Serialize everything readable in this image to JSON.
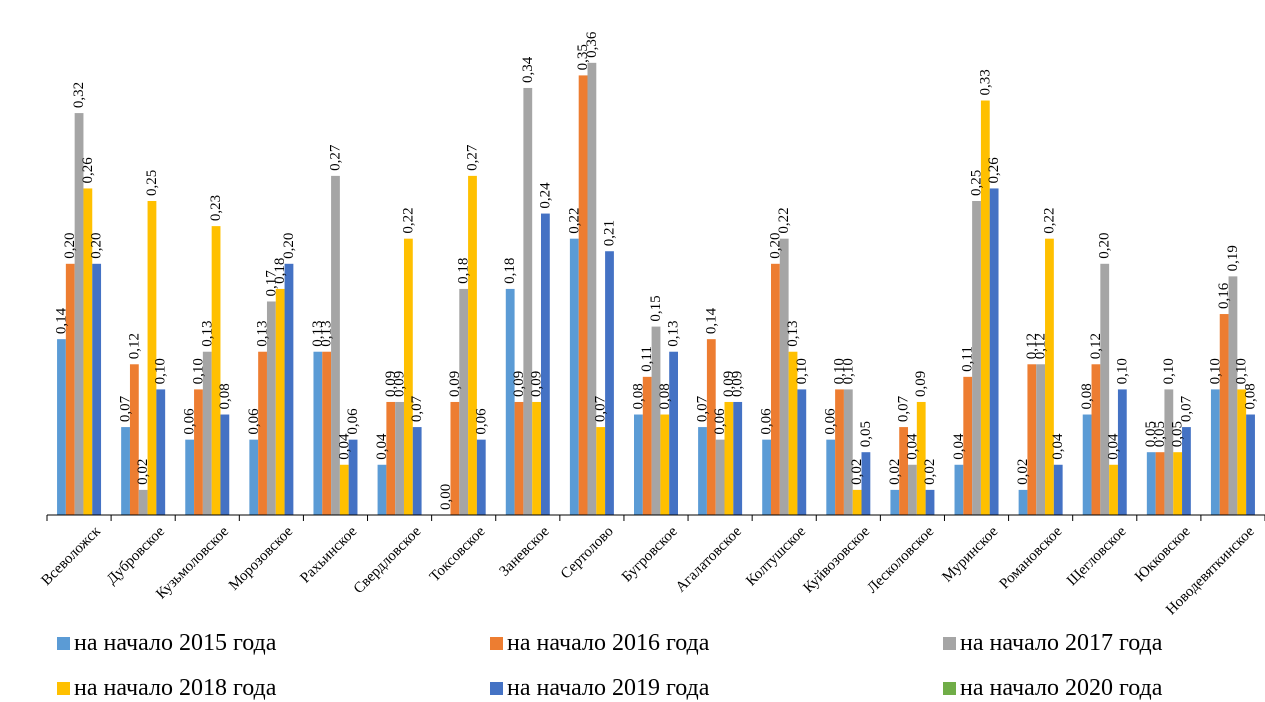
{
  "chart_data": {
    "type": "bar",
    "categories": [
      "Всеволожск",
      "Дубровское",
      "Кузьмоловское",
      "Морозовское",
      "Рахьинское",
      "Свердловское",
      "Токсовское",
      "Заневское",
      "Сертолово",
      "Бугровское",
      "Агалатовское",
      "Колтушское",
      "Куйвозовское",
      "Лесколовское",
      "Муринское",
      "Романовское",
      "Щегловское",
      "Юкковское",
      "Новодевяткинское"
    ],
    "series": [
      {
        "name": "на начало 2015 года",
        "color": "#5b9bd5",
        "values": [
          0.14,
          0.07,
          0.06,
          0.06,
          0.13,
          0.04,
          0.0,
          0.18,
          0.22,
          0.08,
          0.07,
          0.06,
          0.06,
          0.02,
          0.04,
          0.02,
          0.08,
          0.05,
          0.1
        ]
      },
      {
        "name": "на начало 2016 года",
        "color": "#ed7d31",
        "values": [
          0.2,
          0.12,
          0.1,
          0.13,
          0.13,
          0.09,
          0.09,
          0.09,
          0.35,
          0.11,
          0.14,
          0.2,
          0.1,
          0.07,
          0.11,
          0.12,
          0.12,
          0.05,
          0.16
        ]
      },
      {
        "name": "на начало 2017 года",
        "color": "#a5a5a5",
        "values": [
          0.32,
          0.02,
          0.13,
          0.17,
          0.27,
          0.09,
          0.18,
          0.34,
          0.36,
          0.15,
          0.06,
          0.22,
          0.1,
          0.04,
          0.25,
          0.12,
          0.2,
          0.1,
          0.19
        ]
      },
      {
        "name": "на начало 2018 года",
        "color": "#ffc000",
        "values": [
          0.26,
          0.25,
          0.23,
          0.18,
          0.04,
          0.22,
          0.27,
          0.09,
          0.07,
          0.08,
          0.09,
          0.13,
          0.02,
          0.09,
          0.33,
          0.22,
          0.04,
          0.05,
          0.1
        ]
      },
      {
        "name": "на начало 2019 года",
        "color": "#4472c4",
        "values": [
          0.2,
          0.1,
          0.08,
          0.2,
          0.06,
          0.07,
          0.06,
          0.24,
          0.21,
          0.13,
          0.09,
          0.1,
          0.05,
          0.02,
          0.26,
          0.04,
          0.1,
          0.07,
          0.08
        ]
      },
      {
        "name": "на начало 2020 года",
        "color": "#70ad47",
        "values": [
          null,
          null,
          null,
          null,
          null,
          null,
          null,
          null,
          null,
          null,
          null,
          null,
          null,
          null,
          null,
          null,
          null,
          null,
          null
        ]
      }
    ],
    "ylim": [
      0,
      0.36
    ],
    "grid": false,
    "legend_position": "bottom"
  }
}
